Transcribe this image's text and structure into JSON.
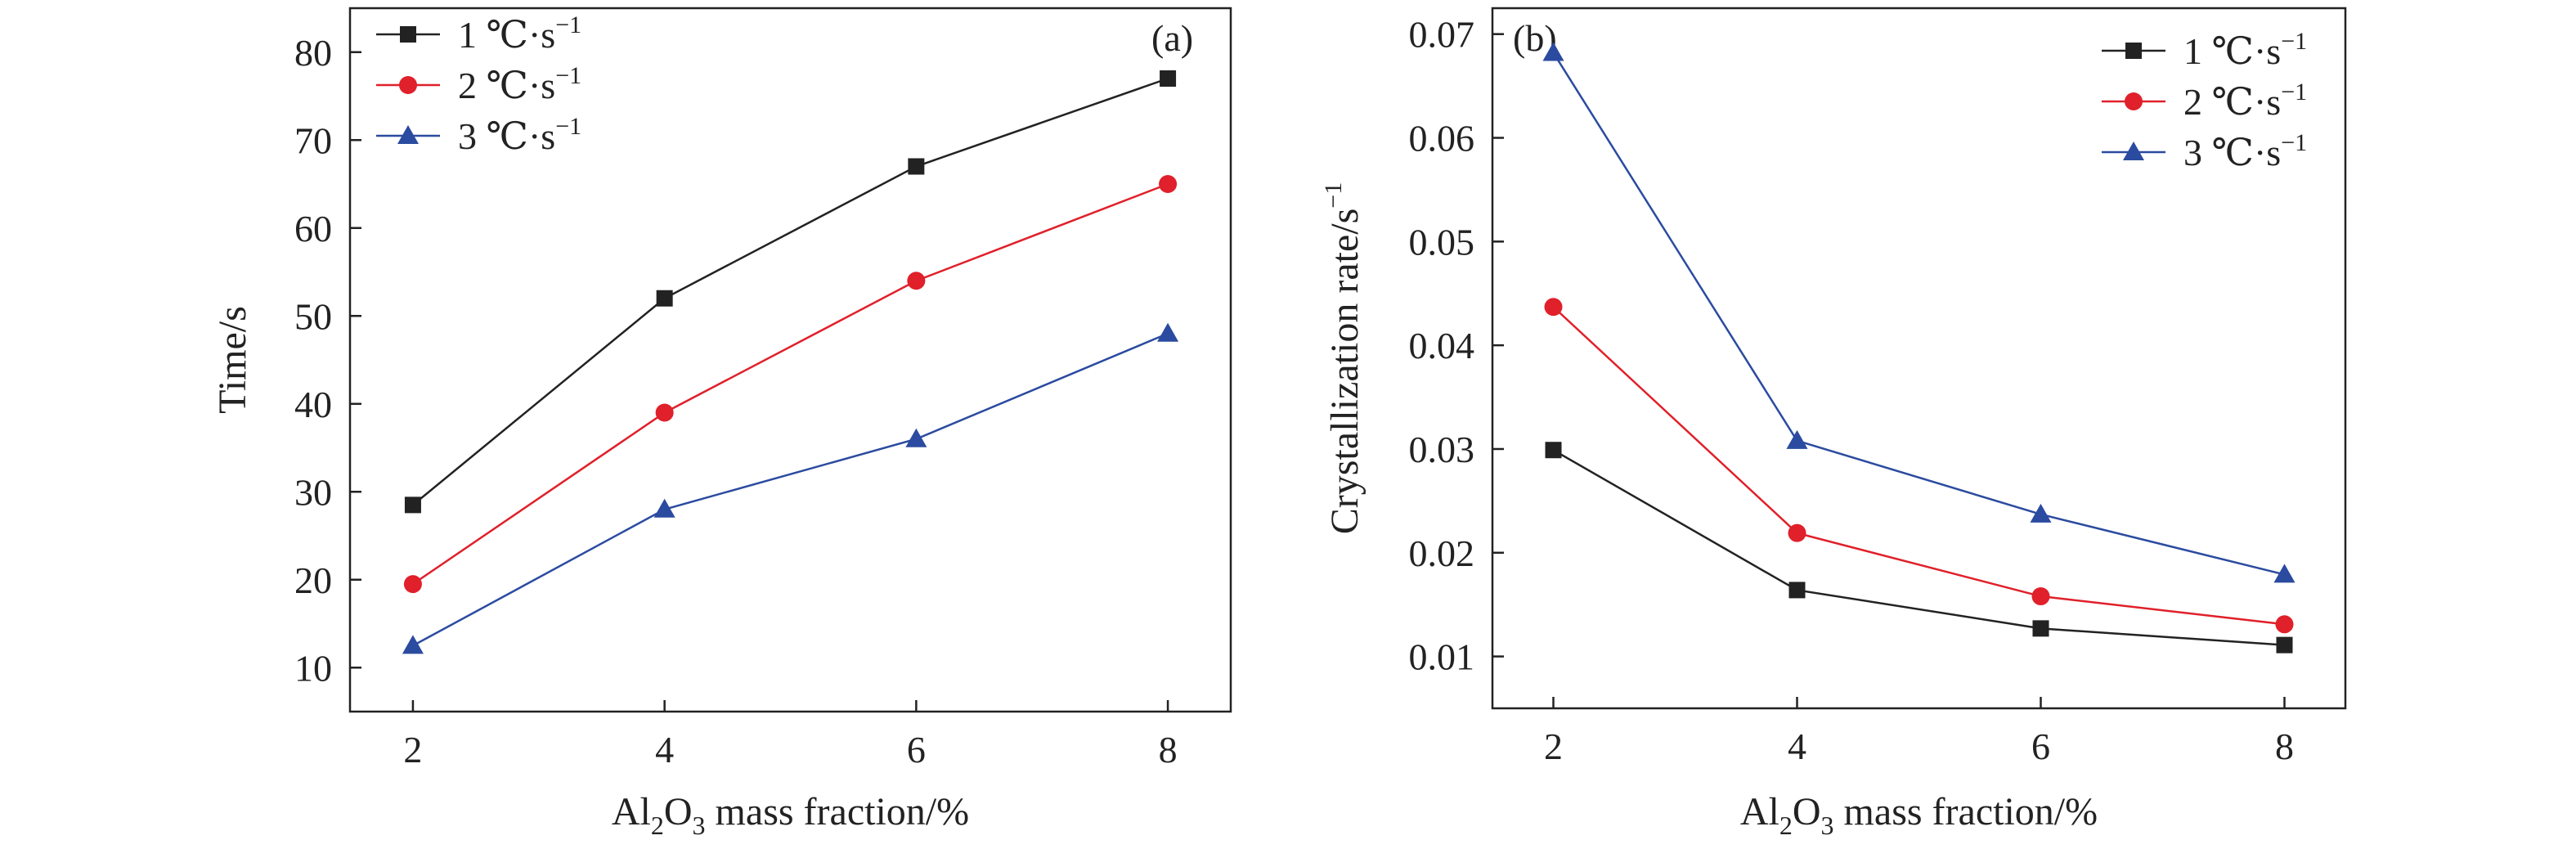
{
  "chart_data": [
    {
      "type": "line",
      "panel_label": "(a)",
      "xlabel": {
        "prefix": "Al",
        "sub1": "2",
        "mid": "O",
        "sub2": "3",
        "suffix": " mass fraction/%"
      },
      "ylabel": "Time/s",
      "x": [
        2,
        4,
        6,
        8
      ],
      "xlim": [
        1.5,
        8.5
      ],
      "ylim": [
        5,
        85
      ],
      "xticks": [
        2,
        4,
        6,
        8
      ],
      "yticks": [
        10,
        20,
        30,
        40,
        50,
        60,
        70,
        80
      ],
      "ytick_decimals": 0,
      "grid": false,
      "legend_position": "top-left",
      "series": [
        {
          "name": "1 ℃·s",
          "name_sup": "−1",
          "color": "#222222",
          "marker": "square",
          "values": [
            28.5,
            52,
            67,
            77
          ]
        },
        {
          "name": "2 ℃·s",
          "name_sup": "−1",
          "color": "#e0202a",
          "marker": "circle",
          "values": [
            19.5,
            39,
            54,
            65
          ]
        },
        {
          "name": "3 ℃·s",
          "name_sup": "−1",
          "color": "#2b4ba0",
          "marker": "triangle",
          "values": [
            12.5,
            28,
            36,
            48
          ]
        }
      ]
    },
    {
      "type": "line",
      "panel_label": "(b)",
      "xlabel": {
        "prefix": "Al",
        "sub1": "2",
        "mid": "O",
        "sub2": "3",
        "suffix": " mass fraction/%"
      },
      "ylabel": "Crystallization rate/s",
      "ylabel_sup": "−1",
      "x": [
        2,
        4,
        6,
        8
      ],
      "xlim": [
        1.5,
        8.5
      ],
      "ylim": [
        0.005,
        0.0725
      ],
      "xticks": [
        2,
        4,
        6,
        8
      ],
      "yticks": [
        0.01,
        0.02,
        0.03,
        0.04,
        0.05,
        0.06,
        0.07
      ],
      "ytick_decimals": 2,
      "grid": false,
      "legend_position": "top-right",
      "series": [
        {
          "name": "1 ℃·s",
          "name_sup": "−1",
          "color": "#222222",
          "marker": "square",
          "values": [
            0.0299,
            0.0164,
            0.0127,
            0.0111
          ]
        },
        {
          "name": "2 ℃·s",
          "name_sup": "−1",
          "color": "#e0202a",
          "marker": "circle",
          "values": [
            0.0437,
            0.0219,
            0.0158,
            0.0131
          ]
        },
        {
          "name": "3 ℃·s",
          "name_sup": "−1",
          "color": "#2b4ba0",
          "marker": "triangle",
          "values": [
            0.0682,
            0.0308,
            0.0237,
            0.0179
          ]
        }
      ]
    }
  ]
}
